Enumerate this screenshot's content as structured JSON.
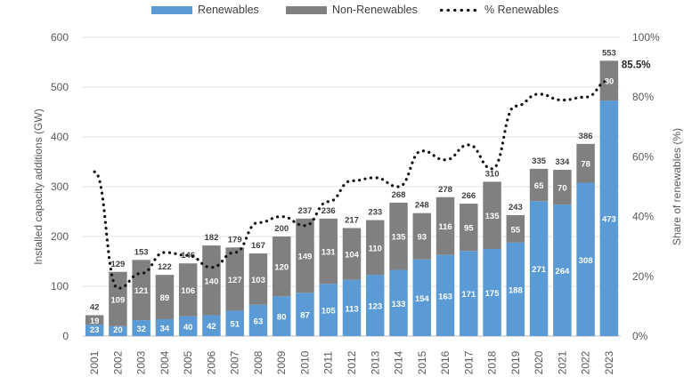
{
  "chart_data": {
    "type": "bar",
    "stacked": true,
    "categories": [
      "2001",
      "2002",
      "2003",
      "2004",
      "2005",
      "2006",
      "2007",
      "2008",
      "2009",
      "2010",
      "2011",
      "2012",
      "2013",
      "2014",
      "2015",
      "2016",
      "2017",
      "2018",
      "2019",
      "2020",
      "2021",
      "2022",
      "2023"
    ],
    "series": [
      {
        "name": "Renewables",
        "color": "#5b9bd5",
        "values": [
          23,
          20,
          32,
          34,
          40,
          42,
          51,
          63,
          80,
          87,
          105,
          113,
          123,
          133,
          154,
          163,
          171,
          175,
          188,
          271,
          264,
          308,
          473
        ]
      },
      {
        "name": "Non-Renewables",
        "color": "#808080",
        "values": [
          19,
          109,
          121,
          89,
          106,
          140,
          127,
          103,
          120,
          149,
          131,
          104,
          110,
          135,
          93,
          116,
          95,
          135,
          55,
          65,
          70,
          78,
          80
        ]
      }
    ],
    "totals": [
      42,
      129,
      153,
      122,
      146,
      182,
      179,
      167,
      200,
      237,
      236,
      217,
      233,
      268,
      248,
      278,
      266,
      310,
      243,
      335,
      334,
      386,
      553
    ],
    "line_series": {
      "name": "% Renewables",
      "axis": "right",
      "values": [
        55,
        16,
        21,
        28,
        27,
        23,
        28,
        38,
        40,
        37,
        45,
        52,
        53,
        50,
        62,
        59,
        64,
        56,
        77,
        81,
        79,
        80,
        85.5
      ],
      "end_label": "85.5%"
    },
    "ylabel": "Installed capacity additions (GW)",
    "ylim": [
      0,
      600
    ],
    "yticks": [
      0,
      100,
      200,
      300,
      400,
      500,
      600
    ],
    "y2label": "Share of renewables (%)",
    "y2lim": [
      0,
      100
    ],
    "y2ticks": [
      "0%",
      "20%",
      "40%",
      "60%",
      "80%",
      "100%"
    ],
    "legend_position": "top",
    "grid": true,
    "title": ""
  },
  "legend": {
    "renewables": "Renewables",
    "non_renewables": "Non-Renewables",
    "pct_renewables": "% Renewables"
  }
}
